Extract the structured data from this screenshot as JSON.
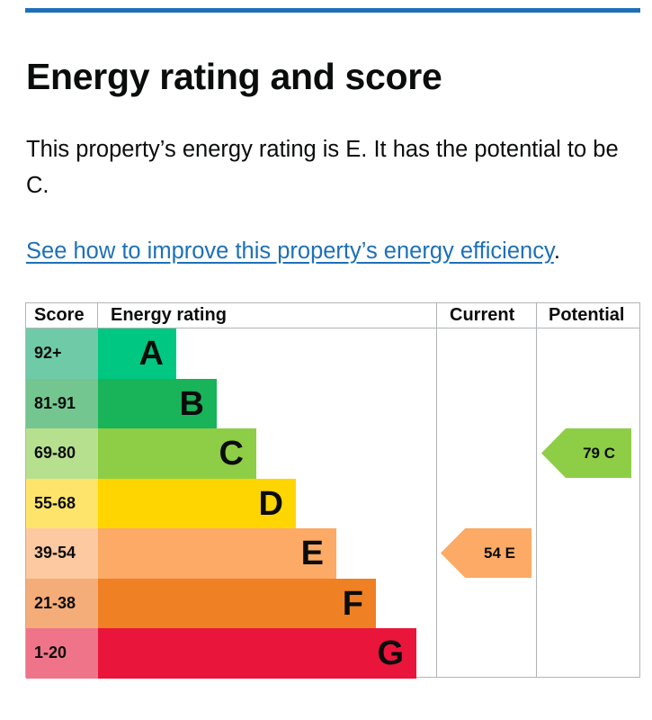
{
  "title": "Energy rating and score",
  "description": "This property’s energy rating is E. It has the potential to be C.",
  "link_text": "See how to improve this property’s energy efficiency",
  "link_suffix": ".",
  "table": {
    "headers": {
      "score": "Score",
      "rating": "Energy rating",
      "current": "Current",
      "potential": "Potential"
    },
    "bands": [
      {
        "score": "92+",
        "letter": "A",
        "color": "#00c781",
        "score_color": "#6fcba7"
      },
      {
        "score": "81-91",
        "letter": "B",
        "color": "#19b459",
        "score_color": "#74c690"
      },
      {
        "score": "69-80",
        "letter": "C",
        "color": "#8dce46",
        "score_color": "#b7e08e"
      },
      {
        "score": "55-68",
        "letter": "D",
        "color": "#ffd500",
        "score_color": "#ffe46b"
      },
      {
        "score": "39-54",
        "letter": "E",
        "color": "#fcaa65",
        "score_color": "#fdc9a0"
      },
      {
        "score": "21-38",
        "letter": "F",
        "color": "#ef8023",
        "score_color": "#f4ad79"
      },
      {
        "score": "1-20",
        "letter": "G",
        "color": "#e9153b",
        "score_color": "#f07489"
      }
    ],
    "current": {
      "value": 54,
      "letter": "E",
      "label": "54  E",
      "color": "#fcaa65"
    },
    "potential": {
      "value": 79,
      "letter": "C",
      "label": "79  C",
      "color": "#8dce46"
    }
  }
}
